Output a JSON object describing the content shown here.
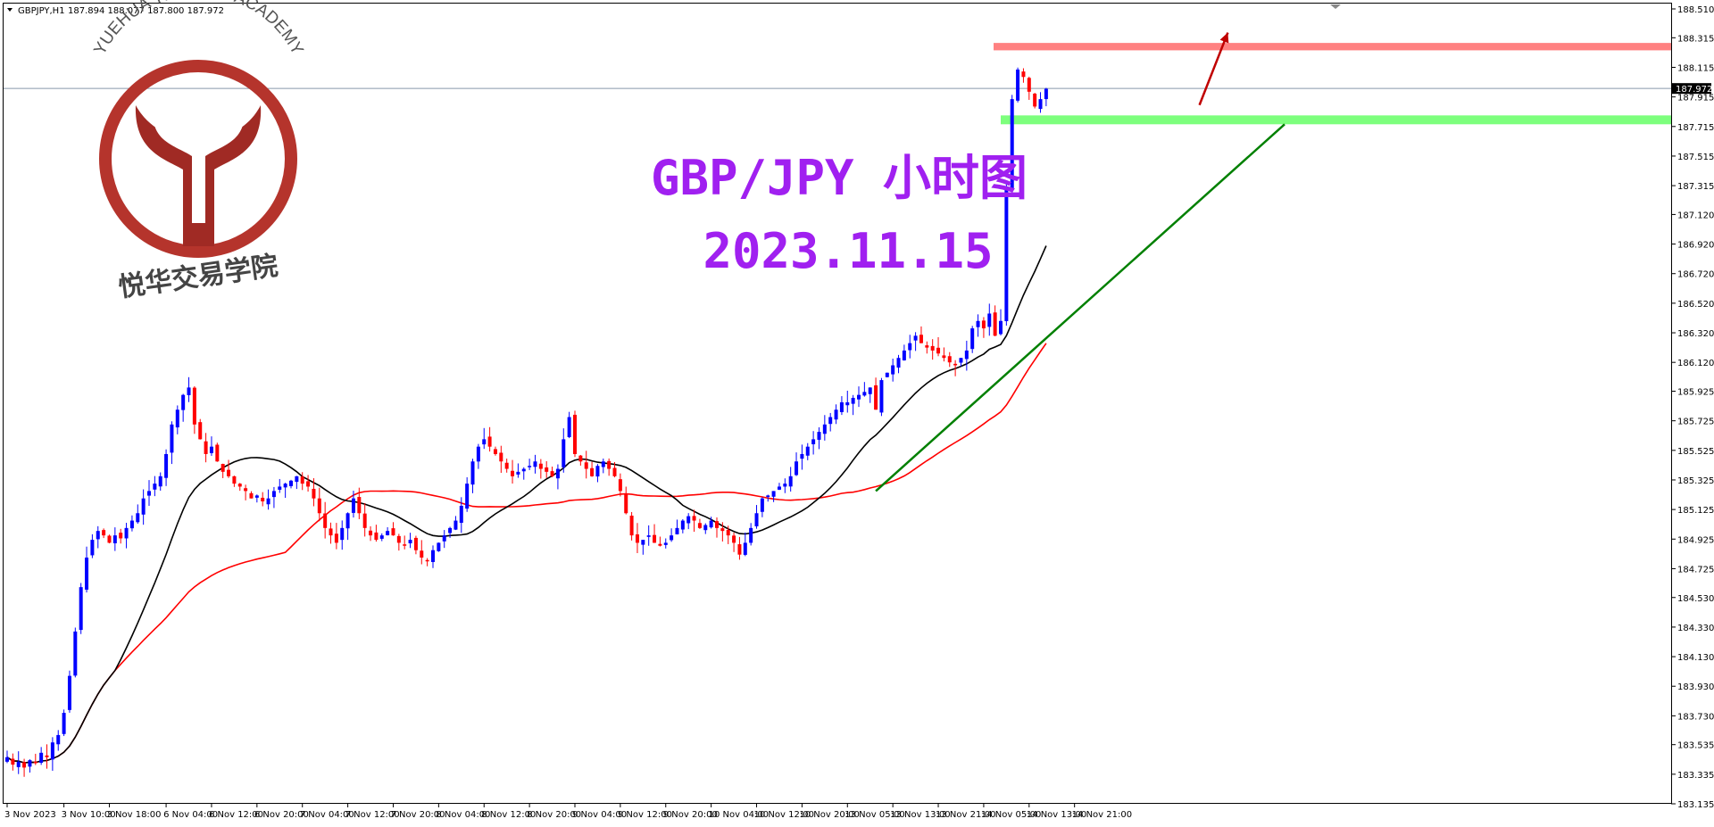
{
  "header": {
    "symbol": "GBPJPY,H1",
    "ohlc": "187.894 188.077 187.800 187.972"
  },
  "title": {
    "line1": "GBP/JPY 小时图",
    "line2": "2023.11.15"
  },
  "logo": {
    "arc_text": "YUEHUA TRADING ACADEMY",
    "chinese_name": "悦华交易学院",
    "icon": "yuehua-logo-icon"
  },
  "current_price_label": "187.972",
  "colors": {
    "bull": "#0000ff",
    "bear": "#ff0000",
    "ma_fast": "#000000",
    "ma_slow": "#ff0000",
    "resistance": "#ff6b6b",
    "support": "#66ff66",
    "trendline": "#008000",
    "arrow": "#c00000",
    "title": "#a020f0"
  },
  "chart_data": {
    "type": "candlestick",
    "title": "GBP/JPY 小时图",
    "subtitle": "2023.11.15",
    "ylim": [
      183.135,
      188.51
    ],
    "y_ticks": [
      "188.510",
      "188.315",
      "188.115",
      "187.915",
      "187.715",
      "187.515",
      "187.315",
      "187.120",
      "186.920",
      "186.720",
      "186.520",
      "186.320",
      "186.120",
      "185.925",
      "185.725",
      "185.525",
      "185.325",
      "185.125",
      "184.925",
      "184.725",
      "184.530",
      "184.330",
      "184.130",
      "183.930",
      "183.730",
      "183.535",
      "183.335",
      "183.135"
    ],
    "x_ticks": [
      {
        "label": "3 Nov 2023",
        "bar": 0
      },
      {
        "label": "3 Nov 10:00",
        "bar": 10
      },
      {
        "label": "3 Nov 18:00",
        "bar": 18
      },
      {
        "label": "6 Nov 04:00",
        "bar": 28
      },
      {
        "label": "6 Nov 12:00",
        "bar": 36
      },
      {
        "label": "6 Nov 20:00",
        "bar": 44
      },
      {
        "label": "7 Nov 04:00",
        "bar": 52
      },
      {
        "label": "7 Nov 12:00",
        "bar": 60
      },
      {
        "label": "7 Nov 20:00",
        "bar": 68
      },
      {
        "label": "8 Nov 04:00",
        "bar": 76
      },
      {
        "label": "8 Nov 12:00",
        "bar": 84
      },
      {
        "label": "8 Nov 20:00",
        "bar": 92
      },
      {
        "label": "9 Nov 04:00",
        "bar": 100
      },
      {
        "label": "9 Nov 12:00",
        "bar": 108
      },
      {
        "label": "9 Nov 20:00",
        "bar": 116
      },
      {
        "label": "10 Nov 04:00",
        "bar": 124
      },
      {
        "label": "10 Nov 12:00",
        "bar": 132
      },
      {
        "label": "10 Nov 20:00",
        "bar": 140
      },
      {
        "label": "13 Nov 05:00",
        "bar": 148
      },
      {
        "label": "13 Nov 13:00",
        "bar": 156
      },
      {
        "label": "13 Nov 21:00",
        "bar": 164
      },
      {
        "label": "14 Nov 05:00",
        "bar": 172
      },
      {
        "label": "14 Nov 13:00",
        "bar": 180
      },
      {
        "label": "14 Nov 21:00",
        "bar": 188
      }
    ],
    "closes": [
      183.45,
      183.4,
      183.42,
      183.38,
      183.43,
      183.41,
      183.48,
      183.45,
      183.55,
      183.6,
      183.75,
      184.0,
      184.3,
      184.6,
      184.8,
      184.92,
      184.98,
      184.95,
      184.9,
      184.95,
      184.93,
      185.0,
      185.05,
      185.1,
      185.2,
      185.25,
      185.3,
      185.35,
      185.5,
      185.7,
      185.8,
      185.9,
      185.95,
      185.7,
      185.6,
      185.5,
      185.55,
      185.45,
      185.38,
      185.35,
      185.3,
      185.28,
      185.25,
      185.2,
      185.22,
      185.18,
      185.2,
      185.25,
      185.28,
      185.3,
      185.32,
      185.35,
      185.3,
      185.28,
      185.2,
      185.1,
      185.0,
      184.95,
      184.9,
      185.0,
      185.1,
      185.2,
      185.1,
      185.0,
      184.95,
      184.92,
      184.95,
      184.98,
      184.95,
      184.9,
      184.88,
      184.92,
      184.85,
      184.8,
      184.78,
      184.85,
      184.9,
      184.95,
      185.0,
      185.05,
      185.15,
      185.3,
      185.45,
      185.55,
      185.6,
      185.55,
      185.5,
      185.45,
      185.4,
      185.35,
      185.38,
      185.4,
      185.42,
      185.45,
      185.4,
      185.38,
      185.35,
      185.4,
      185.6,
      185.75,
      185.5,
      185.45,
      185.4,
      185.35,
      185.42,
      185.45,
      185.4,
      185.35,
      185.25,
      185.1,
      184.95,
      184.9,
      184.92,
      184.95,
      184.9,
      184.88,
      184.9,
      184.95,
      185.0,
      185.05,
      185.08,
      185.05,
      185.0,
      185.02,
      185.05,
      185.0,
      184.98,
      184.95,
      184.9,
      184.82,
      184.9,
      185.0,
      185.1,
      185.2,
      185.22,
      185.25,
      185.28,
      185.3,
      185.35,
      185.45,
      185.5,
      185.55,
      185.6,
      185.65,
      185.7,
      185.75,
      185.8,
      185.85,
      185.85,
      185.88,
      185.9,
      185.92,
      185.95,
      185.8,
      186.0,
      186.05,
      186.1,
      186.15,
      186.2,
      186.25,
      186.3,
      186.25,
      186.22,
      186.2,
      186.18,
      186.15,
      186.12,
      186.1,
      186.15,
      186.2,
      186.35,
      186.4,
      186.35,
      186.45,
      186.3,
      186.4,
      187.3,
      187.9,
      188.1,
      188.05,
      187.95,
      187.85,
      187.9,
      187.97
    ],
    "ma_fast": {
      "period": 20
    },
    "ma_slow": {
      "period": 50
    },
    "annotations": {
      "resistance_zone": [
        188.23,
        188.28
      ],
      "support_zone": [
        187.73,
        187.79
      ],
      "trendline": {
        "from": {
          "bar": 153,
          "price": 185.25
        },
        "to": {
          "bar": 225,
          "price": 187.73
        }
      },
      "arrow": {
        "from": {
          "bar": 210,
          "price": 187.86
        },
        "to": {
          "bar": 215,
          "price": 188.35
        }
      }
    }
  }
}
